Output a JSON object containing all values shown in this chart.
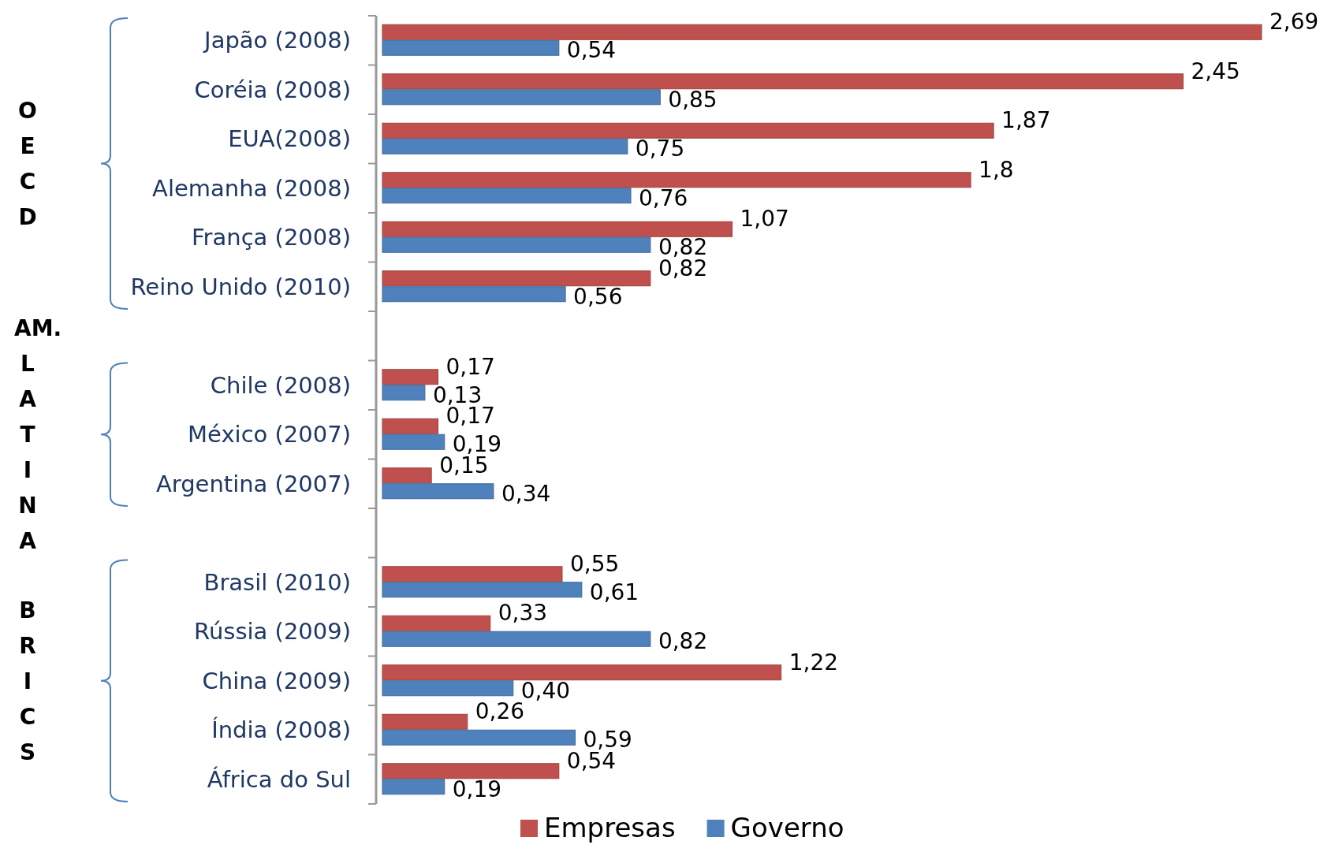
{
  "chart_data": {
    "type": "bar",
    "orientation": "horizontal",
    "legend": "bottom",
    "categories": [
      "Japão (2008)",
      "Coréia (2008)",
      "EUA(2008)",
      "Alemanha (2008)",
      "França (2008)",
      "Reino Unido (2010)",
      null,
      "Chile (2008)",
      "México (2007)",
      "Argentina (2007)",
      null,
      "Brasil (2010)",
      "Rússia (2009)",
      "China (2009)",
      "Índia (2008)",
      "África do Sul"
    ],
    "series": [
      {
        "name": "Empresas",
        "color": "#c0504d",
        "values": [
          2.69,
          2.45,
          1.87,
          1.8,
          1.07,
          0.82,
          null,
          0.17,
          0.17,
          0.15,
          null,
          0.55,
          0.33,
          1.22,
          0.26,
          0.54
        ],
        "value_labels": [
          "2,69",
          "2,45",
          "1,87",
          "1,8",
          "1,07",
          "0,82",
          null,
          "0,17",
          "0,17",
          "0,15",
          null,
          "0,55",
          "0,33",
          "1,22",
          "0,26",
          "0,54"
        ]
      },
      {
        "name": "Governo",
        "color": "#4f81bd",
        "values": [
          0.54,
          0.85,
          0.75,
          0.76,
          0.82,
          0.56,
          null,
          0.13,
          0.19,
          0.34,
          null,
          0.61,
          0.82,
          0.4,
          0.59,
          0.19
        ],
        "value_labels": [
          "0,54",
          "0,85",
          "0,75",
          "0,76",
          "0,82",
          "0,56",
          null,
          "0,13",
          "0,19",
          "0,34",
          null,
          "0,61",
          "0,82",
          "0,40",
          "0,59",
          "0,19"
        ]
      }
    ],
    "annotations": [
      "OECD",
      "AM. LATINA",
      "BRICS"
    ]
  }
}
